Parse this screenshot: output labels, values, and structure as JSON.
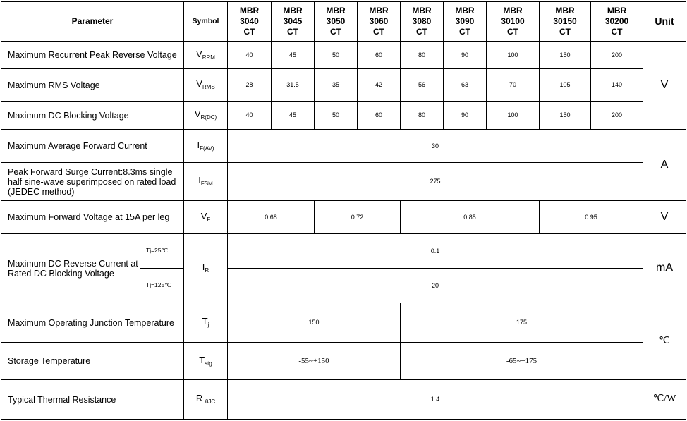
{
  "header": {
    "parameter": "Parameter",
    "symbol": "Symbol",
    "unit": "Unit",
    "models": [
      [
        "MBR",
        "3040",
        "CT"
      ],
      [
        "MBR",
        "3045",
        "CT"
      ],
      [
        "MBR",
        "3050",
        "CT"
      ],
      [
        "MBR",
        "3060",
        "CT"
      ],
      [
        "MBR",
        "3080",
        "CT"
      ],
      [
        "MBR",
        "3090",
        "CT"
      ],
      [
        "MBR",
        "30100",
        "CT"
      ],
      [
        "MBR",
        "30150",
        "CT"
      ],
      [
        "MBR",
        "30200",
        "CT"
      ]
    ]
  },
  "rows": {
    "vrrm": {
      "param": "Maximum Recurrent Peak Reverse Voltage",
      "sym": "V",
      "sub": "RRM",
      "values": [
        "40",
        "45",
        "50",
        "60",
        "80",
        "90",
        "100",
        "150",
        "200"
      ]
    },
    "vrms": {
      "param": "Maximum RMS Voltage",
      "sym": "V",
      "sub": "RMS",
      "values": [
        "28",
        "31.5",
        "35",
        "42",
        "56",
        "63",
        "70",
        "105",
        "140"
      ]
    },
    "vdc": {
      "param": "Maximum DC Blocking Voltage",
      "sym": "V",
      "sub": "R(DC)",
      "values": [
        "40",
        "45",
        "50",
        "60",
        "80",
        "90",
        "100",
        "150",
        "200"
      ]
    },
    "voltage_unit": "V",
    "ifav": {
      "param": "Maximum Average Forward Current",
      "sym": "I",
      "sub": "F(AV)",
      "value": "30"
    },
    "ifsm": {
      "param": "Peak Forward Surge Current:8.3ms single half sine-wave superimposed on rated load (JEDEC method)",
      "sym": "I",
      "sub": "FSM",
      "value": "275"
    },
    "current_unit": "A",
    "vf": {
      "param": "Maximum Forward Voltage at 15A per leg",
      "sym": "V",
      "sub": "F",
      "values": [
        "0.68",
        "0.72",
        "0.85",
        "0.95"
      ],
      "unit": "V"
    },
    "ir": {
      "param": "Maximum DC Reverse Current at Rated DC Blocking Voltage",
      "cond1": "Tj=25℃",
      "cond2": "Tj=125℃",
      "sym": "I",
      "sub": "R",
      "value1": "0.1",
      "value2": "20",
      "unit": "mA"
    },
    "tj": {
      "param": "Maximum Operating Junction Temperature",
      "sym": "T",
      "sub": "j",
      "values": [
        "150",
        "175"
      ]
    },
    "tstg": {
      "param": "Storage Temperature",
      "sym": "T",
      "sub": "stg",
      "values": [
        "-55~+150",
        "-65~+175"
      ]
    },
    "temp_unit": "℃",
    "rth": {
      "param": "Typical Thermal Resistance",
      "sym": "R",
      "sub": "θJC",
      "value": "1.4",
      "unit": "℃/W"
    }
  }
}
